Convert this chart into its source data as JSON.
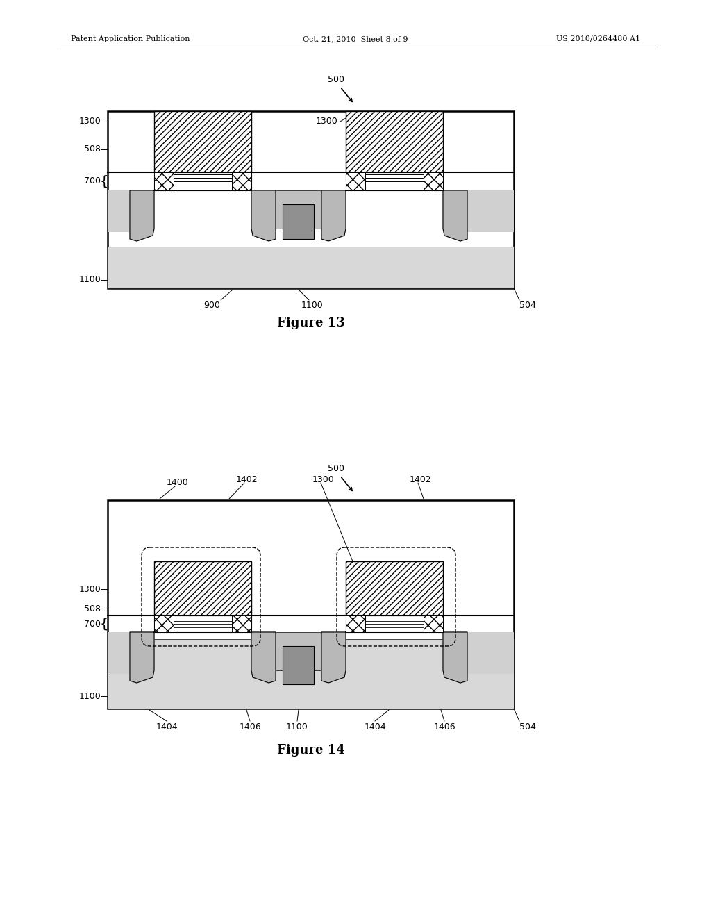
{
  "page_header_left": "Patent Application Publication",
  "page_header_mid": "Oct. 21, 2010  Sheet 8 of 9",
  "page_header_right": "US 2010/0264480 A1",
  "fig13_title": "Figure 13",
  "fig14_title": "Figure 14",
  "bg": "#ffffff"
}
